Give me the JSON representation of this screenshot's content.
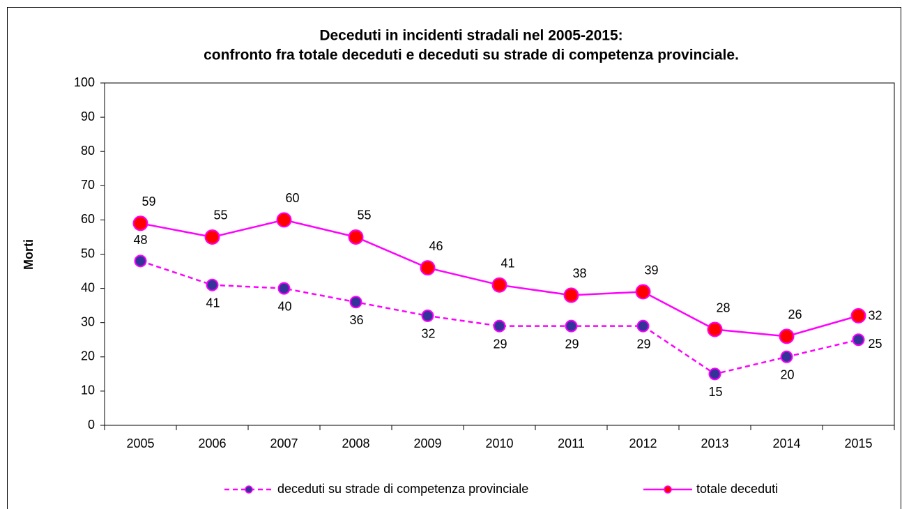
{
  "chart_data": {
    "type": "line",
    "title": [
      "Deceduti in incidenti stradali nel 2005-2015:",
      "confronto fra totale deceduti e deceduti su strade di competenza provinciale."
    ],
    "y_label": "Morti",
    "categories": [
      "2005",
      "2006",
      "2007",
      "2008",
      "2009",
      "2010",
      "2011",
      "2012",
      "2013",
      "2014",
      "2015"
    ],
    "series": [
      {
        "name": "deceduti su strade di competenza provinciale",
        "color": "#ff00ff",
        "marker_color": "#333399",
        "line_style": "dashed",
        "values": [
          48,
          41,
          40,
          36,
          32,
          29,
          29,
          29,
          15,
          20,
          25
        ]
      },
      {
        "name": "totale deceduti",
        "color": "#ff00ff",
        "marker_color": "#ff0000",
        "line_style": "solid",
        "values": [
          59,
          55,
          60,
          55,
          46,
          41,
          38,
          39,
          28,
          26,
          32
        ]
      }
    ],
    "ylim": [
      0,
      100
    ],
    "yticks": [
      0,
      10,
      20,
      30,
      40,
      50,
      60,
      70,
      80,
      90,
      100
    ],
    "grid": false,
    "legend": "bottom"
  }
}
